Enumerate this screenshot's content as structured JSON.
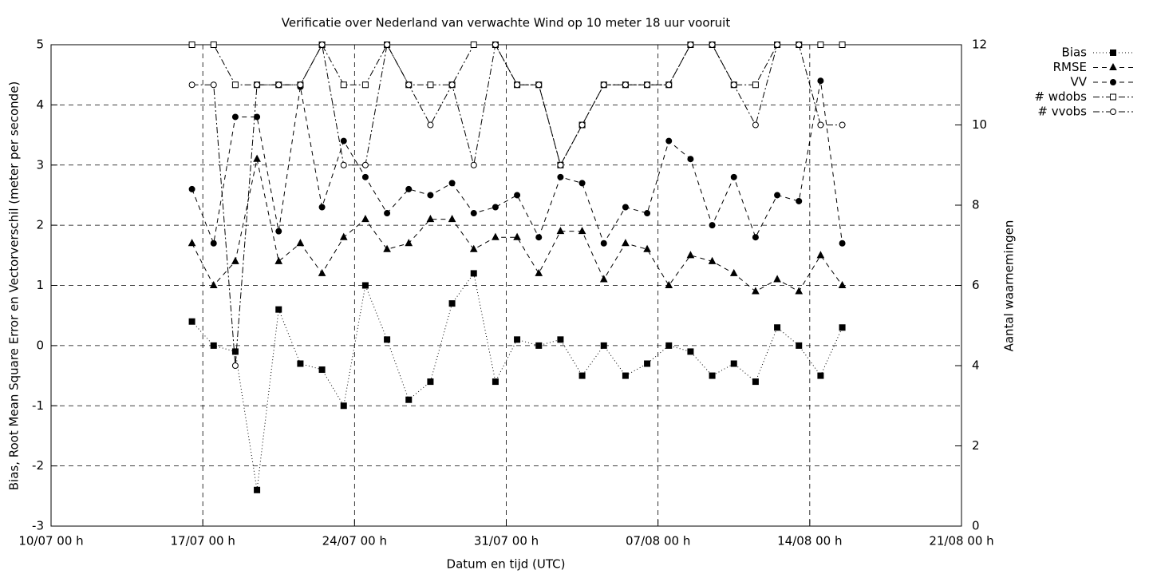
{
  "chart_data": {
    "type": "line",
    "title": "Verificatie over Nederland van verwachte Wind op 10 meter 18 uur vooruit",
    "xlabel": "Datum en tijd (UTC)",
    "ylabel": "Bias, Root Mean Square Error en Vectorverschil (meter per seconde)",
    "y2label": "Aantal waarnemingen",
    "x": [
      "16/07 12 h",
      "17/07 12 h",
      "18/07 12 h",
      "19/07 12 h",
      "20/07 12 h",
      "21/07 12 h",
      "22/07 12 h",
      "23/07 12 h",
      "24/07 12 h",
      "25/07 12 h",
      "26/07 12 h",
      "27/07 12 h",
      "28/07 12 h",
      "29/07 12 h",
      "30/07 12 h",
      "31/07 12 h",
      "01/08 12 h",
      "02/08 12 h",
      "03/08 12 h",
      "04/08 12 h",
      "05/08 12 h",
      "06/08 12 h",
      "07/08 12 h",
      "08/08 12 h",
      "09/08 12 h",
      "10/08 12 h",
      "11/08 12 h",
      "12/08 12 h",
      "13/08 12 h",
      "14/08 12 h",
      "15/08 12 h"
    ],
    "xlim": [
      "10/07 00 h",
      "21/08 00 h"
    ],
    "xticks": [
      "10/07 00 h",
      "17/07 00 h",
      "24/07 00 h",
      "31/07 00 h",
      "07/08 00 h",
      "14/08 00 h",
      "21/08 00 h"
    ],
    "ylim": [
      -3,
      5
    ],
    "yticks": [
      -3,
      -2,
      -1,
      0,
      1,
      2,
      3,
      4,
      5
    ],
    "y2lim": [
      0,
      12
    ],
    "y2ticks": [
      0,
      2,
      4,
      6,
      8,
      10,
      12
    ],
    "grid": true,
    "legend": "outside-right",
    "series": [
      {
        "name": "Bias",
        "color": "#000000",
        "marker": "square-filled",
        "dash": "dotted",
        "values": [
          0.4,
          0.0,
          -0.1,
          -2.4,
          0.6,
          -0.3,
          -0.4,
          -1.0,
          1.0,
          0.1,
          -0.9,
          -0.6,
          0.7,
          1.2,
          -0.6,
          0.1,
          0.0,
          0.1,
          -0.5,
          0.0,
          -0.5,
          -0.3,
          0.0,
          -0.1,
          -0.5,
          -0.3,
          -0.6,
          0.3,
          0.0,
          -0.5,
          0.3
        ]
      },
      {
        "name": "RMSE",
        "color": "#000000",
        "marker": "triangle-filled",
        "dash": "dashed",
        "values": [
          1.7,
          1.0,
          1.4,
          3.1,
          1.4,
          1.7,
          1.2,
          1.8,
          2.1,
          1.6,
          1.7,
          2.1,
          2.1,
          1.6,
          1.8,
          1.8,
          1.2,
          1.9,
          1.9,
          1.1,
          1.7,
          1.6,
          1.0,
          1.5,
          1.4,
          1.2,
          0.9,
          1.1,
          0.9,
          1.5,
          1.0
        ]
      },
      {
        "name": "VV",
        "color": "#000000",
        "marker": "circle-filled",
        "dash": "dashed",
        "values": [
          2.6,
          1.7,
          3.8,
          3.8,
          1.9,
          4.3,
          2.3,
          3.4,
          2.8,
          2.2,
          2.6,
          2.5,
          2.7,
          2.2,
          2.3,
          2.5,
          1.8,
          2.8,
          2.7,
          1.7,
          2.3,
          2.2,
          3.4,
          3.1,
          2.0,
          2.8,
          1.8,
          2.5,
          2.4,
          4.4,
          1.7
        ]
      },
      {
        "name": "# wdobs",
        "color": "#000000",
        "marker": "square-open",
        "dash": "dashdot",
        "axis": "y2",
        "values": [
          12,
          12,
          11,
          11,
          11,
          11,
          12,
          11,
          11,
          12,
          11,
          11,
          11,
          12,
          12,
          11,
          11,
          9,
          10,
          11,
          11,
          11,
          11,
          12,
          12,
          11,
          11,
          12,
          12,
          12,
          12
        ]
      },
      {
        "name": "# vvobs",
        "color": "#000000",
        "marker": "circle-open",
        "dash": "dashdot",
        "axis": "y2",
        "values": [
          11,
          11,
          4,
          11,
          11,
          11,
          12,
          9,
          9,
          12,
          11,
          10,
          11,
          9,
          12,
          11,
          11,
          9,
          10,
          11,
          11,
          11,
          11,
          12,
          12,
          11,
          10,
          12,
          12,
          10,
          10
        ]
      }
    ]
  }
}
